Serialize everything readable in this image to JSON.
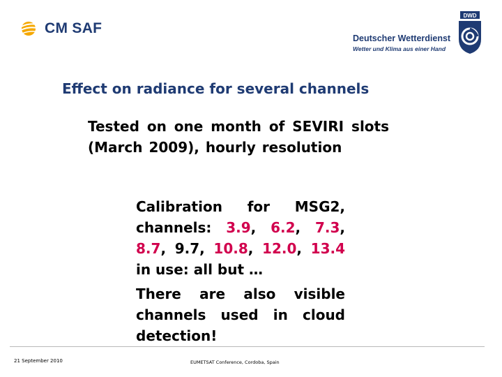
{
  "header": {
    "left_logo_text": "CM SAF",
    "right_logo_name": "Deutscher Wetterdienst",
    "right_logo_tagline": "Wetter und Klima aus einer Hand",
    "right_logo_badge": "DWD",
    "brand_color": "#1f3b73",
    "sun_color": "#f5a800"
  },
  "slide": {
    "title": "Effect on radiance for several channels",
    "para1": "Tested on one month of SEVIRI slots (March 2009), hourly resolution",
    "para2": {
      "prefix": "Calibration for MSG2, channels: ",
      "ch_39": "3.9",
      "ch_62": "6.2",
      "ch_73": "7.3",
      "ch_87": "8.7",
      "ch_97": "9.7",
      "ch_108": "10.8",
      "ch_120": "12.0",
      "ch_134": "13.4",
      "suffix": " in use: all but …",
      "highlight_color": "#d1004d"
    },
    "para3": "There are also visible channels used in cloud detection!"
  },
  "footer": {
    "date": "21 September 2010",
    "conference": "EUMETSAT Conference, Cordoba, Spain"
  }
}
